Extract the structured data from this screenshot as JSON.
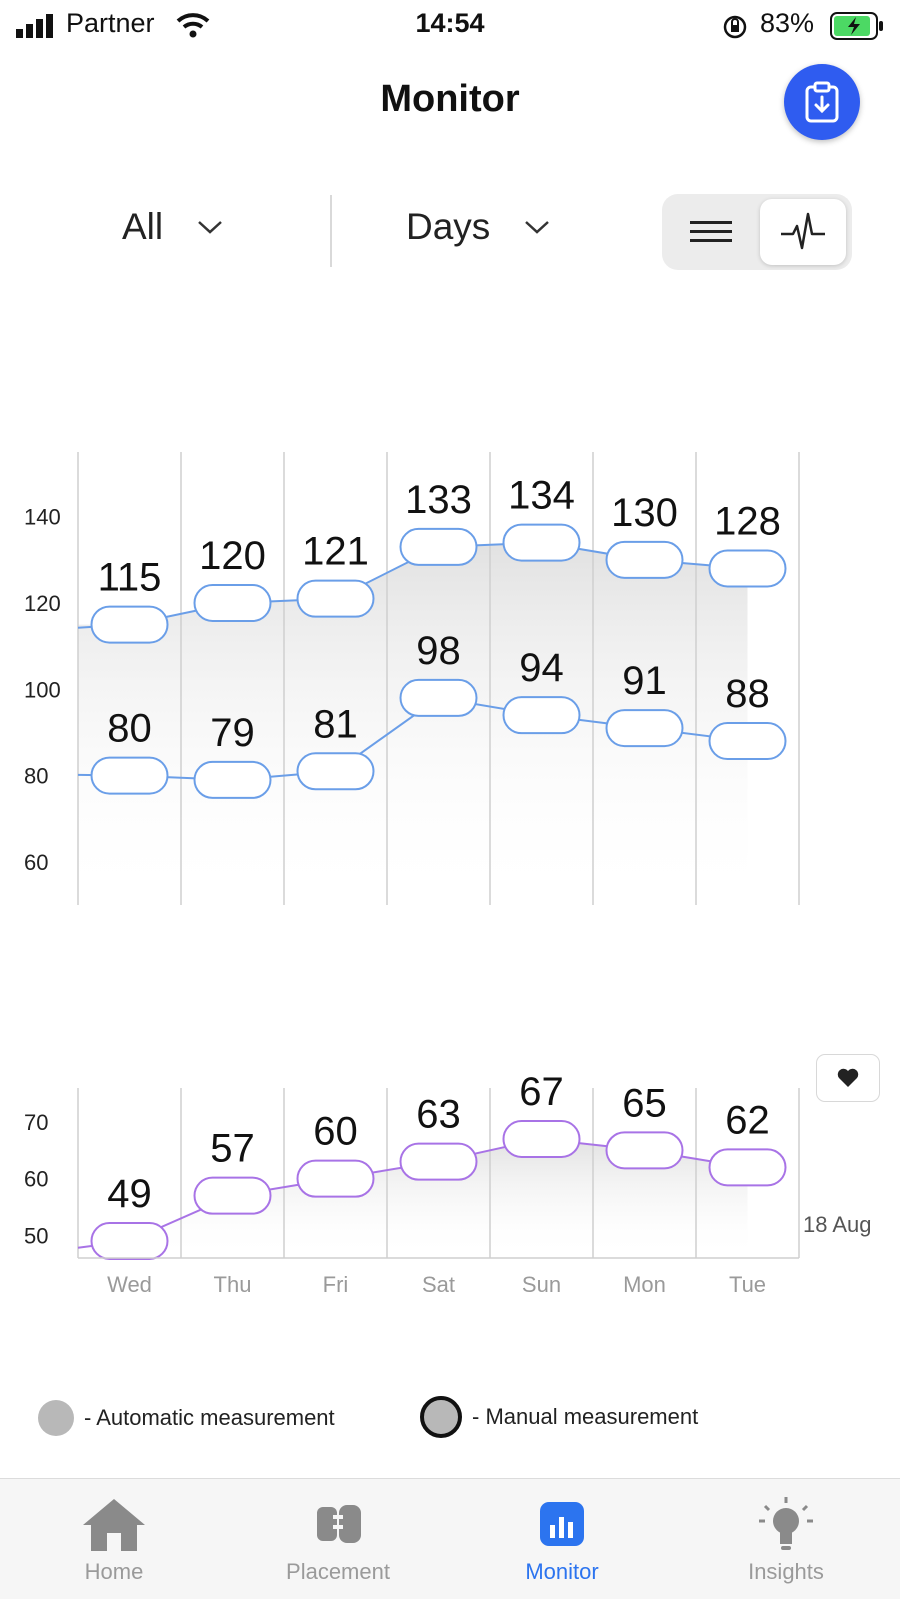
{
  "status_bar": {
    "carrier": "Partner",
    "time": "14:54",
    "battery": "83%"
  },
  "header": {
    "title": "Monitor"
  },
  "controls": {
    "filter_type": "All",
    "filter_period": "Days",
    "view_modes": [
      "list-icon",
      "waveform-icon"
    ],
    "active_view": "waveform-icon"
  },
  "chart_data": [
    {
      "type": "line",
      "categories": [
        "Wed",
        "Thu",
        "Fri",
        "Sat",
        "Sun",
        "Mon",
        "Tue"
      ],
      "series": [
        {
          "values": [
            115,
            120,
            121,
            133,
            134,
            130,
            128
          ]
        },
        {
          "values": [
            80,
            79,
            81,
            98,
            94,
            91,
            88
          ]
        }
      ],
      "y_ticks": [
        140,
        120,
        100,
        80,
        60
      ],
      "ylim": [
        50,
        155
      ],
      "color": "#6a9ee8",
      "grid": "vertical"
    },
    {
      "type": "line",
      "categories": [
        "Wed",
        "Thu",
        "Fri",
        "Sat",
        "Sun",
        "Mon",
        "Tue"
      ],
      "series": [
        {
          "values": [
            49,
            57,
            60,
            63,
            67,
            65,
            62
          ]
        }
      ],
      "y_ticks": [
        70,
        60,
        50
      ],
      "ylim": [
        46,
        76
      ],
      "color": "#a873e6",
      "grid": "vertical",
      "date_label": "18 Aug"
    }
  ],
  "legend": {
    "automatic": "- Automatic measurement",
    "manual": "- Manual measurement"
  },
  "tabs": [
    {
      "label": "Home",
      "icon": "home-icon"
    },
    {
      "label": "Placement",
      "icon": "placement-icon"
    },
    {
      "label": "Monitor",
      "icon": "monitor-icon",
      "active": true
    },
    {
      "label": "Insights",
      "icon": "insights-icon"
    }
  ],
  "colors": {
    "accent": "#2f5cf0",
    "tab_active": "#2c74ef",
    "bp_line": "#6a9ee8",
    "hr_line": "#a873e6"
  }
}
